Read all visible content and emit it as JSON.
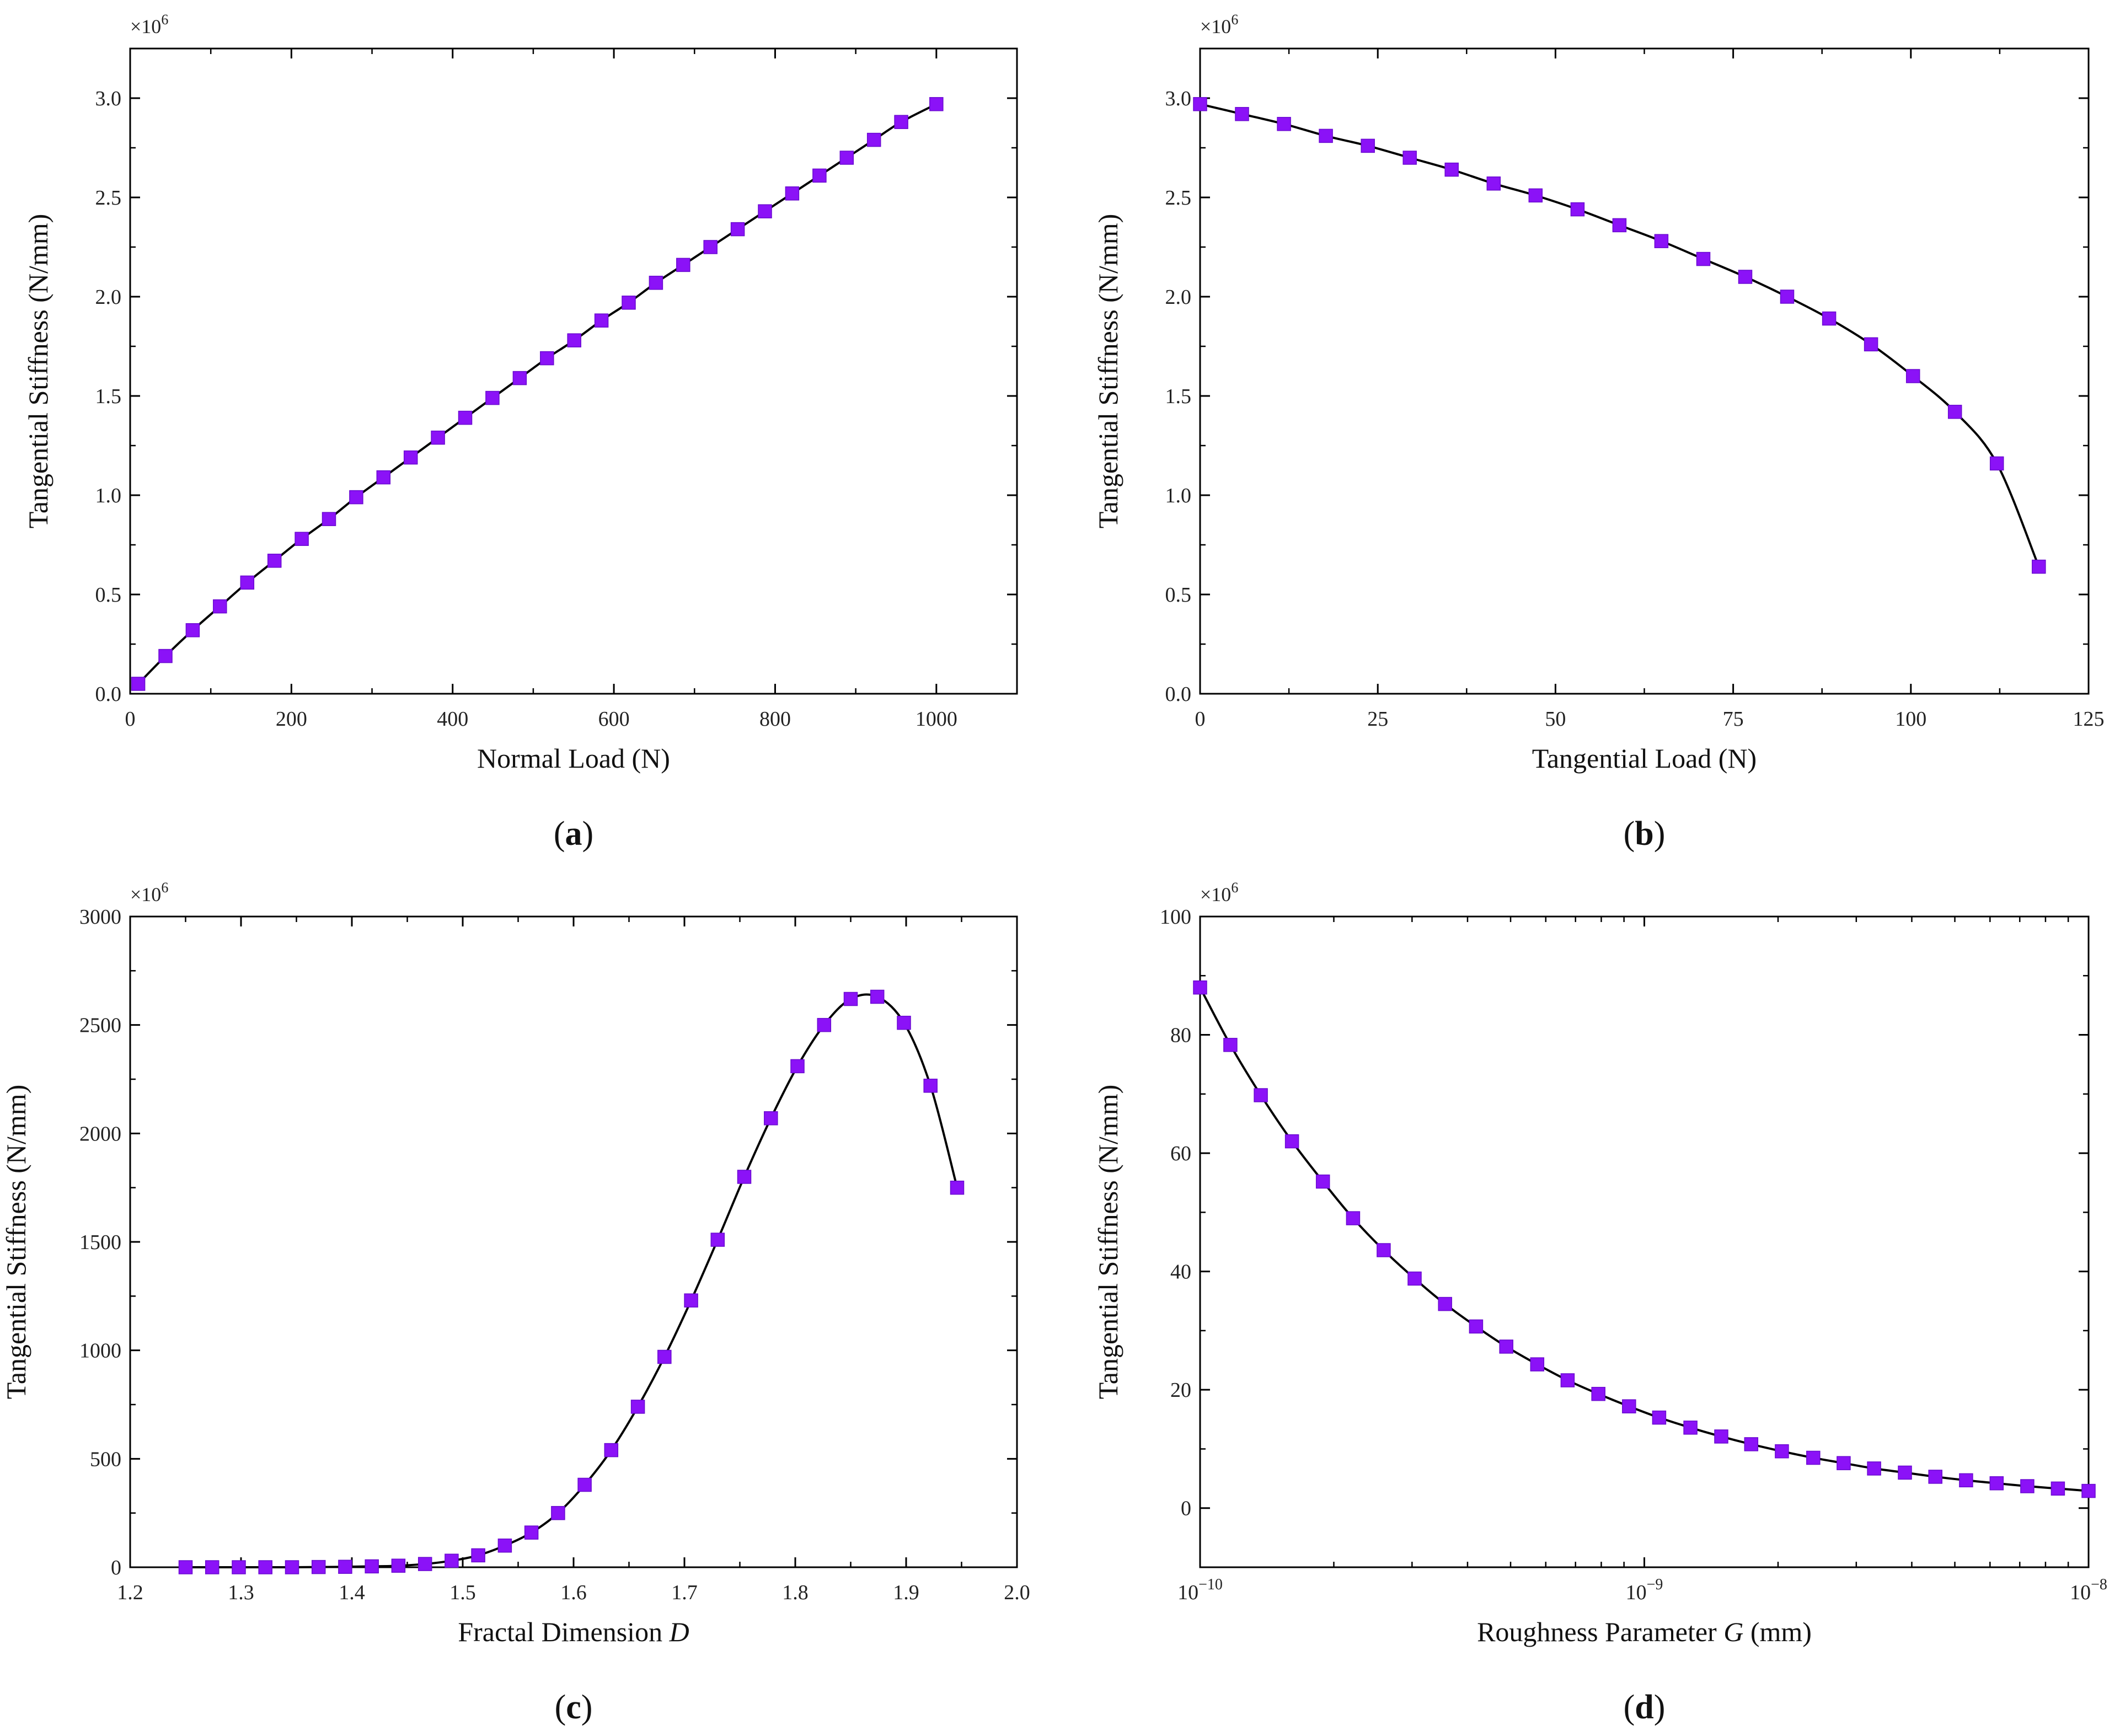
{
  "chart_data": [
    {
      "type": "line",
      "panel": "(a)",
      "panel_letter": "a",
      "scale": "linear",
      "xlabel": "Normal Load (N)",
      "ylabel": "Tangential Stiffness (N/mm)",
      "multiplier": "×10",
      "multiplier_exp": "6",
      "xlim": [
        0,
        1100
      ],
      "ylim": [
        0,
        3.25
      ],
      "xticks": [
        0,
        200,
        400,
        600,
        800,
        1000
      ],
      "xtick_labels": [
        "0",
        "200",
        "400",
        "600",
        "800",
        "1000"
      ],
      "yticks": [
        0,
        0.5,
        1.0,
        1.5,
        2.0,
        2.5,
        3.0
      ],
      "ytick_labels": [
        "0.0",
        "0.5",
        "1.0",
        "1.5",
        "2.0",
        "2.5",
        "3.0"
      ],
      "series": [
        {
          "name": "Tangential Stiffness",
          "x": [
            10,
            43.8,
            77.6,
            111.4,
            145.2,
            179,
            212.8,
            246.6,
            280.4,
            314.2,
            348,
            381.8,
            415.6,
            449.4,
            483.2,
            517,
            550.8,
            584.6,
            618.4,
            652.2,
            686,
            719.8,
            753.6,
            787.4,
            821.2,
            855,
            888.8,
            922.6,
            956.4,
            1000
          ],
          "y": [
            0.05,
            0.19,
            0.32,
            0.44,
            0.56,
            0.67,
            0.78,
            0.88,
            0.99,
            1.09,
            1.19,
            1.29,
            1.39,
            1.49,
            1.59,
            1.69,
            1.78,
            1.88,
            1.97,
            2.07,
            2.16,
            2.25,
            2.34,
            2.43,
            2.52,
            2.61,
            2.7,
            2.79,
            2.88,
            2.97
          ]
        }
      ]
    },
    {
      "type": "line",
      "panel": "(b)",
      "panel_letter": "b",
      "scale": "linear",
      "xlabel": "Tangential Load (N)",
      "ylabel": "Tangential Stiffness (N/mm)",
      "multiplier": "×10",
      "multiplier_exp": "6",
      "xlim": [
        0,
        125
      ],
      "ylim": [
        0,
        3.25
      ],
      "xticks": [
        0,
        25,
        50,
        75,
        100,
        125
      ],
      "xtick_labels": [
        "0",
        "25",
        "50",
        "75",
        "100",
        "125"
      ],
      "yticks": [
        0,
        0.5,
        1.0,
        1.5,
        2.0,
        2.5,
        3.0
      ],
      "ytick_labels": [
        "0.0",
        "0.5",
        "1.0",
        "1.5",
        "2.0",
        "2.5",
        "3.0"
      ],
      "series": [
        {
          "name": "Tangential Stiffness",
          "x": [
            0,
            5.9,
            11.8,
            17.7,
            23.6,
            29.5,
            35.4,
            41.3,
            47.2,
            53.1,
            59,
            64.9,
            70.8,
            76.7,
            82.6,
            88.5,
            94.4,
            100.3,
            106.2,
            112.1,
            118
          ],
          "y": [
            2.97,
            2.92,
            2.87,
            2.81,
            2.76,
            2.7,
            2.64,
            2.57,
            2.51,
            2.44,
            2.36,
            2.28,
            2.19,
            2.1,
            2.0,
            1.89,
            1.76,
            1.6,
            1.42,
            1.16,
            0.64
          ]
        }
      ]
    },
    {
      "type": "line",
      "panel": "(c)",
      "panel_letter": "c",
      "scale": "linear",
      "xlabel": "Fractal Dimension ",
      "xlabel_italic": "D",
      "ylabel": "Tangential Stiffness (N/mm)",
      "multiplier": "×10",
      "multiplier_exp": "6",
      "xlim": [
        1.2,
        2.0
      ],
      "ylim": [
        0,
        3000
      ],
      "xticks": [
        1.2,
        1.3,
        1.4,
        1.5,
        1.6,
        1.7,
        1.8,
        1.9,
        2.0
      ],
      "xtick_labels": [
        "1.2",
        "1.3",
        "1.4",
        "1.5",
        "1.6",
        "1.7",
        "1.8",
        "1.9",
        "2.0"
      ],
      "yticks": [
        0,
        500,
        1000,
        1500,
        2000,
        2500,
        3000
      ],
      "ytick_labels": [
        "0",
        "500",
        "1000",
        "1500",
        "2000",
        "2500",
        "3000"
      ],
      "series": [
        {
          "name": "Tangential Stiffness",
          "x": [
            1.25,
            1.274,
            1.298,
            1.322,
            1.346,
            1.37,
            1.394,
            1.418,
            1.442,
            1.466,
            1.49,
            1.514,
            1.538,
            1.562,
            1.586,
            1.61,
            1.634,
            1.658,
            1.682,
            1.706,
            1.73,
            1.754,
            1.778,
            1.802,
            1.826,
            1.85,
            1.874,
            1.898,
            1.922,
            1.946
          ],
          "y": [
            0,
            0,
            0,
            0,
            0,
            1,
            2,
            4,
            7,
            15,
            30,
            55,
            100,
            160,
            250,
            380,
            540,
            740,
            970,
            1230,
            1510,
            1800,
            2070,
            2310,
            2500,
            2620,
            2630,
            2510,
            2220,
            1750
          ]
        }
      ]
    },
    {
      "type": "line",
      "panel": "(d)",
      "panel_letter": "d",
      "scale": "logx",
      "xlabel": "Roughness Parameter ",
      "xlabel_italic": "G",
      "xlabel_suffix": " (mm)",
      "ylabel": "Tangential Stiffness (N/mm)",
      "multiplier": "×10",
      "multiplier_exp": "6",
      "xlim": [
        1e-10,
        1e-08
      ],
      "ylim": [
        -10,
        100
      ],
      "xticks": [
        1e-10,
        1e-09,
        1e-08
      ],
      "xtick_base": [
        "10",
        "10",
        "10"
      ],
      "xtick_exp": [
        "−10",
        "−9",
        "−8"
      ],
      "yticks": [
        0,
        20,
        40,
        60,
        80,
        100
      ],
      "ytick_labels": [
        "0",
        "20",
        "40",
        "60",
        "80",
        "100"
      ],
      "series": [
        {
          "name": "Tangential Stiffness",
          "x": [
            1e-10,
            1.17e-10,
            1.37e-10,
            1.61e-10,
            1.89e-10,
            2.21e-10,
            2.59e-10,
            3.04e-10,
            3.56e-10,
            4.18e-10,
            4.89e-10,
            5.74e-10,
            6.72e-10,
            7.88e-10,
            9.24e-10,
            1.08e-09,
            1.27e-09,
            1.49e-09,
            1.74e-09,
            2.04e-09,
            2.4e-09,
            2.81e-09,
            3.29e-09,
            3.86e-09,
            4.52e-09,
            5.3e-09,
            6.21e-09,
            7.28e-09,
            8.53e-09,
            1e-08
          ],
          "y": [
            88,
            78.3,
            69.8,
            62,
            55.2,
            49,
            43.6,
            38.8,
            34.5,
            30.7,
            27.3,
            24.3,
            21.6,
            19.3,
            17.2,
            15.3,
            13.6,
            12.1,
            10.8,
            9.6,
            8.5,
            7.6,
            6.7,
            6.0,
            5.3,
            4.7,
            4.2,
            3.7,
            3.3,
            2.9
          ]
        }
      ]
    }
  ]
}
